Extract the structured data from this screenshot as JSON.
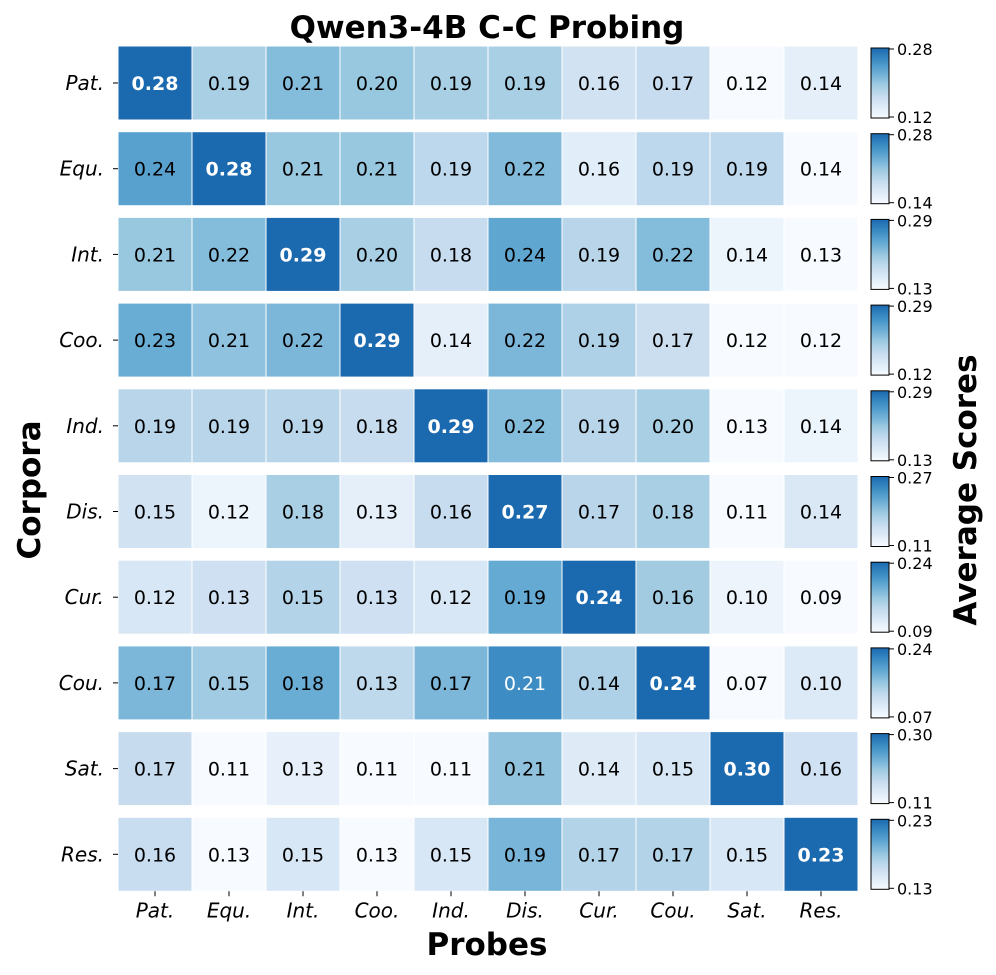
{
  "chart_data": {
    "type": "heatmap",
    "title": "Qwen3-4B C-C Probing",
    "xlabel": "Probes",
    "ylabel": "Corpora",
    "colorbar_label": "Average Scores",
    "colormap": "Blues",
    "x_categories": [
      "Pat.",
      "Equ.",
      "Int.",
      "Coo.",
      "Ind.",
      "Dis.",
      "Cur.",
      "Cou.",
      "Sat.",
      "Res."
    ],
    "y_categories": [
      "Pat.",
      "Equ.",
      "Int.",
      "Coo.",
      "Ind.",
      "Dis.",
      "Cur.",
      "Cou.",
      "Sat.",
      "Res."
    ],
    "rows": [
      {
        "label": "Pat.",
        "values": [
          0.28,
          0.19,
          0.21,
          0.2,
          0.19,
          0.19,
          0.16,
          0.17,
          0.12,
          0.14
        ],
        "cbar_range": [
          0.12,
          0.28
        ],
        "cbar_ticks": [
          "0.28",
          "0.12"
        ]
      },
      {
        "label": "Equ.",
        "values": [
          0.24,
          0.28,
          0.21,
          0.21,
          0.19,
          0.22,
          0.16,
          0.19,
          0.19,
          0.14
        ],
        "cbar_range": [
          0.14,
          0.28
        ],
        "cbar_ticks": [
          "0.28",
          "0.14"
        ]
      },
      {
        "label": "Int.",
        "values": [
          0.21,
          0.22,
          0.29,
          0.2,
          0.18,
          0.24,
          0.19,
          0.22,
          0.14,
          0.13
        ],
        "cbar_range": [
          0.13,
          0.29
        ],
        "cbar_ticks": [
          "0.29",
          "0.13"
        ]
      },
      {
        "label": "Coo.",
        "values": [
          0.23,
          0.21,
          0.22,
          0.29,
          0.14,
          0.22,
          0.19,
          0.17,
          0.12,
          0.12
        ],
        "cbar_range": [
          0.12,
          0.29
        ],
        "cbar_ticks": [
          "0.29",
          "0.12"
        ]
      },
      {
        "label": "Ind.",
        "values": [
          0.19,
          0.19,
          0.19,
          0.18,
          0.29,
          0.22,
          0.19,
          0.2,
          0.13,
          0.14
        ],
        "cbar_range": [
          0.13,
          0.29
        ],
        "cbar_ticks": [
          "0.29",
          "0.13"
        ]
      },
      {
        "label": "Dis.",
        "values": [
          0.15,
          0.12,
          0.18,
          0.13,
          0.16,
          0.27,
          0.17,
          0.18,
          0.11,
          0.14
        ],
        "cbar_range": [
          0.11,
          0.27
        ],
        "cbar_ticks": [
          "0.27",
          "0.11"
        ]
      },
      {
        "label": "Cur.",
        "values": [
          0.12,
          0.13,
          0.15,
          0.13,
          0.12,
          0.19,
          0.24,
          0.16,
          0.1,
          0.09
        ],
        "cbar_range": [
          0.09,
          0.24
        ],
        "cbar_ticks": [
          "0.24",
          "0.09"
        ]
      },
      {
        "label": "Cou.",
        "values": [
          0.17,
          0.15,
          0.18,
          0.13,
          0.17,
          0.21,
          0.14,
          0.24,
          0.07,
          0.1
        ],
        "cbar_range": [
          0.07,
          0.24
        ],
        "cbar_ticks": [
          "0.24",
          "0.07"
        ]
      },
      {
        "label": "Sat.",
        "values": [
          0.17,
          0.11,
          0.13,
          0.11,
          0.11,
          0.21,
          0.14,
          0.15,
          0.3,
          0.16
        ],
        "cbar_range": [
          0.11,
          0.3
        ],
        "cbar_ticks": [
          "0.30",
          "0.11"
        ]
      },
      {
        "label": "Res.",
        "values": [
          0.16,
          0.13,
          0.15,
          0.13,
          0.15,
          0.19,
          0.17,
          0.17,
          0.15,
          0.23
        ],
        "cbar_range": [
          0.13,
          0.23
        ],
        "cbar_ticks": [
          "0.23",
          "0.13"
        ]
      }
    ],
    "value_format": "2 decimals",
    "diagonal_bold": true
  }
}
